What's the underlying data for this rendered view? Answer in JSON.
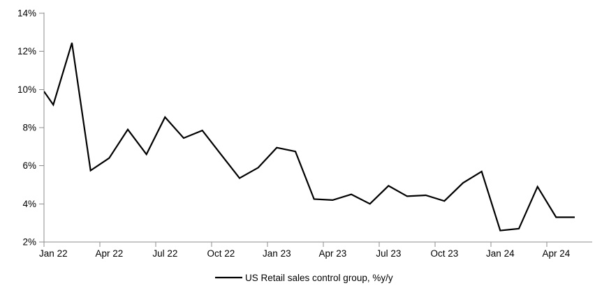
{
  "chart_data": {
    "type": "line",
    "title": "",
    "legend_label": "US Retail sales control group, %y/y",
    "legend_position": "bottom",
    "grid": false,
    "line_color": "#000000",
    "axis_color": "#8c8c8c",
    "text_color": "#000000",
    "y_axis": {
      "min": 2,
      "max": 14,
      "tick_step": 2,
      "tick_labels_top_to_bottom": [
        "14%",
        "12%",
        "10%",
        "8%",
        "6%",
        "4%",
        "2%"
      ],
      "unit": "%"
    },
    "x_axis": {
      "tick_labels": [
        "Jan 22",
        "Apr 22",
        "Jul 22",
        "Oct 22",
        "Jan 23",
        "Apr 23",
        "Jul 23",
        "Oct 23",
        "Jan 24",
        "Apr 24"
      ],
      "months_per_tick": 3
    },
    "left_edge_entry_value": 9.9,
    "categories": [
      "Jan 22",
      "Feb 22",
      "Mar 22",
      "Apr 22",
      "May 22",
      "Jun 22",
      "Jul 22",
      "Aug 22",
      "Sep 22",
      "Oct 22",
      "Nov 22",
      "Dec 22",
      "Jan 23",
      "Feb 23",
      "Mar 23",
      "Apr 23",
      "May 23",
      "Jun 23",
      "Jul 23",
      "Aug 23",
      "Sep 23",
      "Oct 23",
      "Nov 23",
      "Dec 23",
      "Jan 24",
      "Feb 24",
      "Mar 24",
      "Apr 24",
      "May 24"
    ],
    "values": [
      9.2,
      12.45,
      5.75,
      6.4,
      7.9,
      6.6,
      8.55,
      7.45,
      7.85,
      6.6,
      5.35,
      5.9,
      6.95,
      6.75,
      4.25,
      4.2,
      4.5,
      4.0,
      4.95,
      4.4,
      4.45,
      4.15,
      5.1,
      5.7,
      2.6,
      2.7,
      4.9,
      3.3,
      3.3
    ]
  }
}
